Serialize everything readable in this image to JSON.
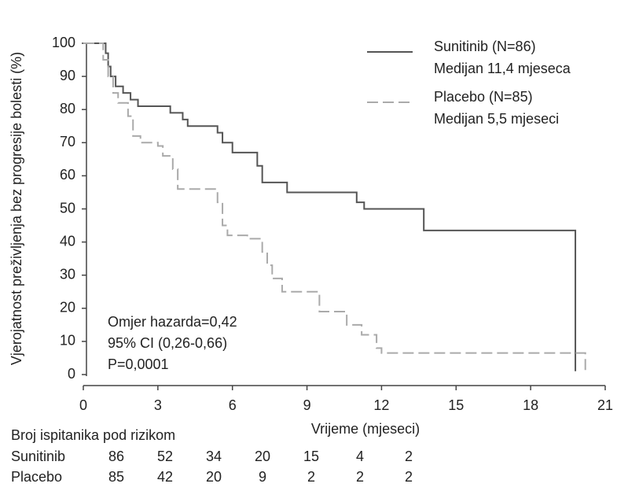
{
  "chart_data": {
    "type": "step",
    "y_label": "Vjerojatnost preživljenja bez progresije bolesti (%)",
    "x_label": "Vrijeme (mjeseci)",
    "xlim": [
      0,
      21
    ],
    "xticks": [
      0,
      3,
      6,
      9,
      12,
      15,
      18,
      21
    ],
    "ylim": [
      0,
      100
    ],
    "yticks": [
      0,
      10,
      20,
      30,
      40,
      50,
      60,
      70,
      80,
      90,
      100
    ],
    "series": [
      {
        "name": "Sunitinib (N=86)",
        "legend_note": "Medijan 11,4 mjeseca",
        "color": "#555555",
        "dash": false,
        "x": [
          0,
          0.9,
          1.0,
          1.1,
          1.3,
          1.6,
          1.9,
          2.2,
          3.5,
          4.0,
          4.2,
          5.4,
          5.6,
          6.0,
          7.0,
          7.2,
          8.2,
          11.0,
          11.3,
          13.7,
          19.8
        ],
        "values": [
          100,
          97,
          93,
          90,
          87,
          85,
          83,
          81,
          79,
          77,
          75,
          73,
          70,
          67,
          63,
          58,
          55,
          52,
          50,
          43.5,
          1
        ]
      },
      {
        "name": "Placebo (N=85)",
        "legend_note": "Medijan 5,5 mjeseci",
        "color": "#aaaaaa",
        "dash": true,
        "x": [
          0,
          0.8,
          1.0,
          1.2,
          1.4,
          1.8,
          2.0,
          2.3,
          3.0,
          3.2,
          3.6,
          3.8,
          5.4,
          5.6,
          5.8,
          6.6,
          7.2,
          7.4,
          7.6,
          8.0,
          9.5,
          10.6,
          11.2,
          11.8,
          12.0,
          20.2
        ],
        "values": [
          100,
          95,
          90,
          85,
          82,
          78,
          72,
          70,
          69,
          66,
          62,
          56,
          52,
          45,
          42,
          41,
          37,
          33,
          29,
          25,
          19,
          15,
          12,
          8,
          6.5,
          1
        ]
      }
    ],
    "annotations": [
      "Omjer hazarda=0,42",
      "95% CI (0,26-0,66)",
      "P=0,0001"
    ],
    "risk_table": {
      "title": "Broj ispitanika pod rizikom",
      "rows": [
        {
          "name": "Sunitinib",
          "values": [
            86,
            52,
            34,
            20,
            15,
            4,
            2
          ]
        },
        {
          "name": "Placebo",
          "values": [
            85,
            42,
            20,
            9,
            2,
            2,
            2
          ]
        }
      ]
    }
  }
}
